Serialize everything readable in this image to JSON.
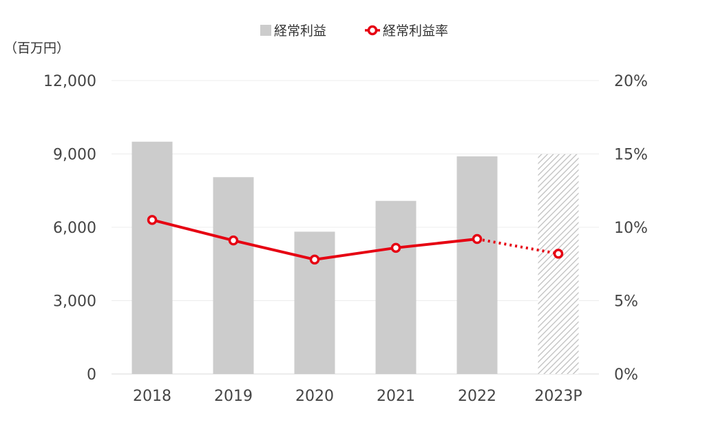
{
  "chart_data": {
    "type": "bar",
    "categories": [
      "2018",
      "2019",
      "2020",
      "2021",
      "2022",
      "2023P"
    ],
    "series": [
      {
        "name": "経常利益",
        "type": "bar",
        "axis": "left",
        "color": "#cccccc",
        "projected_pattern": "hatched",
        "values": [
          9500,
          8050,
          5820,
          7080,
          8900,
          8990
        ]
      },
      {
        "name": "経常利益率",
        "type": "line",
        "axis": "right",
        "color": "#e60012",
        "unit": "%",
        "projected_style": "dotted",
        "values": [
          10.5,
          9.1,
          7.8,
          8.6,
          9.2,
          8.2
        ]
      }
    ],
    "projected_categories": [
      "2023P"
    ],
    "ylabel": "（百万円）",
    "ylim": [
      0,
      12000
    ],
    "yticks": [
      "0",
      "3,000",
      "6,000",
      "9,000",
      "12,000"
    ],
    "y2lim": [
      0,
      20
    ],
    "y2ticks": [
      "0%",
      "5%",
      "10%",
      "15%",
      "20%"
    ],
    "grid": true,
    "legend_position": "top"
  }
}
